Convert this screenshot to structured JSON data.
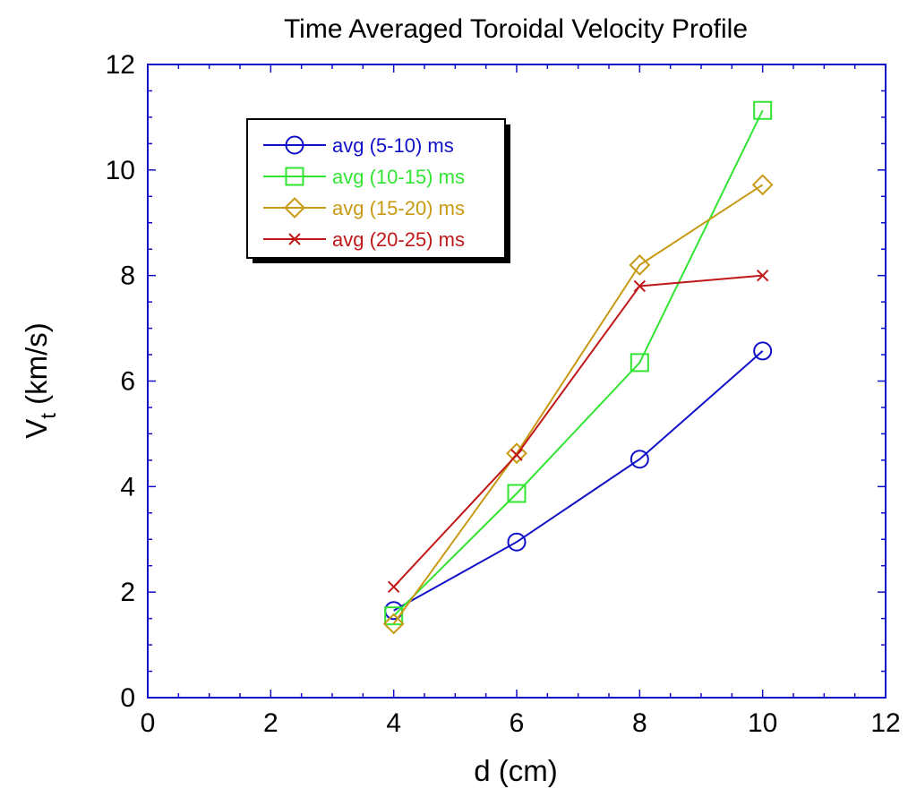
{
  "chart_data": {
    "type": "line",
    "title": "Time Averaged Toroidal Velocity Profile",
    "xlabel": "d (cm)",
    "ylabel_main": "V",
    "ylabel_sub": "t",
    "ylabel_rest": " (km/s)",
    "xlim": [
      0,
      12
    ],
    "ylim": [
      0,
      12
    ],
    "x_ticks": [
      "0",
      "2",
      "4",
      "6",
      "8",
      "10",
      "12"
    ],
    "y_ticks": [
      "0",
      "2",
      "4",
      "6",
      "8",
      "10",
      "12"
    ],
    "grid": false,
    "legend_position": "top-left",
    "x": [
      4,
      6,
      8,
      10
    ],
    "series": [
      {
        "name": "avg (5-10) ms",
        "marker": "circle",
        "color": "#1010c8",
        "values": [
          1.65,
          2.95,
          4.52,
          6.57
        ]
      },
      {
        "name": "avg (10-15) ms",
        "marker": "square",
        "color": "#33e533",
        "values": [
          1.55,
          3.87,
          6.35,
          11.13
        ]
      },
      {
        "name": "avg (15-20) ms",
        "marker": "diamond",
        "color": "#c89a14",
        "values": [
          1.4,
          4.63,
          8.2,
          9.72
        ]
      },
      {
        "name": "avg (20-25) ms",
        "marker": "x",
        "color": "#c01818",
        "values": [
          2.1,
          4.6,
          7.8,
          8.0
        ]
      }
    ]
  }
}
